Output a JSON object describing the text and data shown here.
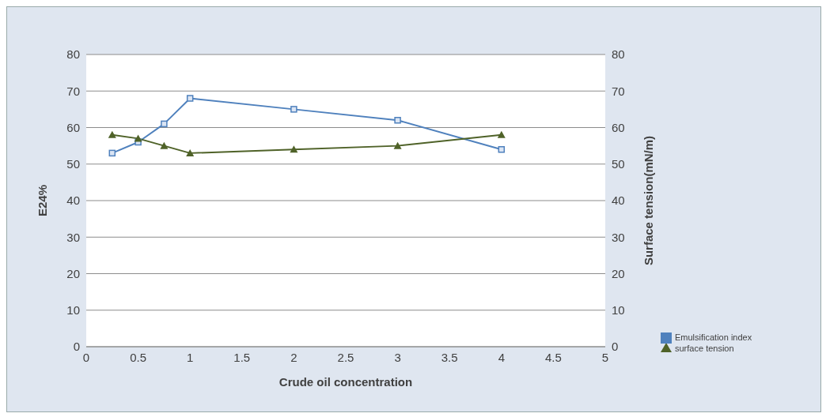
{
  "chart_data": {
    "type": "line",
    "xlabel": "Crude oil concentration",
    "ylabel": "E24%",
    "y2label": "Surface tension(mN/m)",
    "x": [
      0.25,
      0.5,
      0.75,
      1,
      2,
      3,
      4
    ],
    "series": [
      {
        "name": "Emulsification index",
        "color": "#4f81bd",
        "marker": "square",
        "values": [
          53,
          56,
          61,
          68,
          65,
          62,
          54
        ]
      },
      {
        "name": "surface tension",
        "color": "#4f6228",
        "marker": "triangle",
        "axis": "y2",
        "values": [
          58,
          57,
          55,
          53,
          54,
          55,
          58
        ]
      }
    ],
    "xlim": [
      0,
      5
    ],
    "xticks": [
      0,
      0.5,
      1,
      1.5,
      2,
      2.5,
      3,
      3.5,
      4,
      4.5,
      5
    ],
    "ylim": [
      0,
      80
    ],
    "yticks": [
      0,
      10,
      20,
      30,
      40,
      50,
      60,
      70,
      80
    ],
    "y2lim": [
      0,
      80
    ],
    "y2ticks": [
      0,
      10,
      20,
      30,
      40,
      50,
      60,
      70,
      80
    ],
    "grid": "y",
    "legend": "right",
    "line_style": "solid"
  }
}
